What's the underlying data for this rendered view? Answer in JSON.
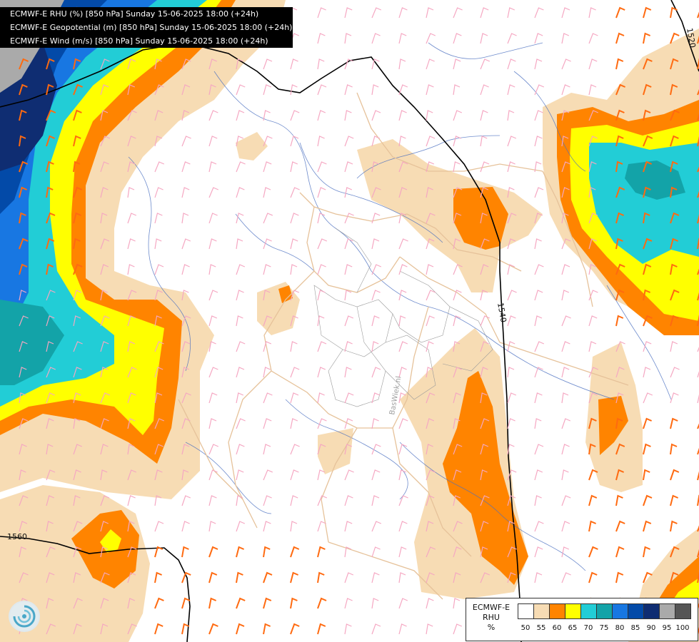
{
  "header": {
    "lines": [
      "ECMWF-E RHU (%) [850 hPa] Sunday 15-06-2025 18:00 (+24h)",
      "ECMWF-E Geopotential (m) [850 hPa] Sunday 15-06-2025 18:00 (+24h)",
      "ECMWF-E Wind (m/s) [850 hPa] Sunday 15-06-2025 18:00 (+24h)"
    ]
  },
  "contours": {
    "labels": [
      "1520",
      "1540",
      "1560"
    ]
  },
  "watermark": "BasWiek.nl",
  "legend": {
    "title_line1": "ECMWF-E",
    "title_line2": "RHU",
    "title_line3": "%",
    "swatches": [
      {
        "label": "50",
        "color": "#ffffff"
      },
      {
        "label": "55",
        "color": "#f7dcb4"
      },
      {
        "label": "60",
        "color": "#ff8400"
      },
      {
        "label": "65",
        "color": "#ffff00"
      },
      {
        "label": "70",
        "color": "#22cdd6"
      },
      {
        "label": "75",
        "color": "#13a3a8"
      },
      {
        "label": "80",
        "color": "#1877e2"
      },
      {
        "label": "85",
        "color": "#034aa8"
      },
      {
        "label": "90",
        "color": "#0f2d72"
      },
      {
        "label": "95",
        "color": "#aaaaaa"
      },
      {
        "label": "100",
        "color": "#555555"
      }
    ]
  },
  "colors": {
    "beige": "#f7dcb4",
    "orange": "#ff8400",
    "yellow": "#ffff00",
    "cyan": "#22cdd6",
    "teal": "#13a3a8",
    "blue": "#1877e2",
    "darkblue": "#034aa8",
    "navy": "#0f2d72",
    "gray": "#aaaaaa",
    "river": "#4a6fc0",
    "border": "#e6c29a",
    "wind_barb": "#f5a7c2",
    "wind_barb_strong": "#ff6a10"
  }
}
